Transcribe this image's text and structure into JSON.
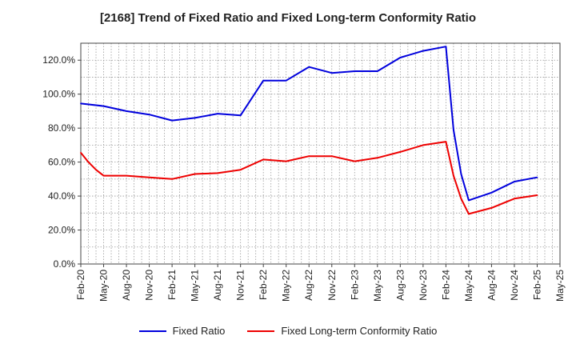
{
  "chart_data": {
    "type": "line",
    "title": "[2168]  Trend of Fixed Ratio and Fixed Long-term Conformity Ratio",
    "xlabel": "",
    "ylabel": "",
    "x_tick_labels": [
      "Feb-20",
      "May-20",
      "Aug-20",
      "Nov-20",
      "Feb-21",
      "May-21",
      "Aug-21",
      "Nov-21",
      "Feb-22",
      "May-22",
      "Aug-22",
      "Nov-22",
      "Feb-23",
      "May-23",
      "Aug-23",
      "Nov-23",
      "Feb-24",
      "May-24",
      "Aug-24",
      "Nov-24",
      "Feb-25",
      "May-25"
    ],
    "y_tick_labels": [
      "0.0%",
      "20.0%",
      "40.0%",
      "60.0%",
      "80.0%",
      "100.0%",
      "120.0%"
    ],
    "ylim": [
      0,
      130
    ],
    "grid": true,
    "legend_position": "bottom",
    "series": [
      {
        "name": "Fixed Ratio",
        "color": "#0000dd",
        "points": [
          [
            "Feb-20",
            94.5
          ],
          [
            "May-20",
            93.0
          ],
          [
            "Aug-20",
            90.0
          ],
          [
            "Nov-20",
            88.0
          ],
          [
            "Feb-21",
            84.5
          ],
          [
            "May-21",
            86.0
          ],
          [
            "Aug-21",
            88.5
          ],
          [
            "Nov-21",
            87.5
          ],
          [
            "Feb-22",
            108.0
          ],
          [
            "May-22",
            108.0
          ],
          [
            "Aug-22",
            116.0
          ],
          [
            "Nov-22",
            112.5
          ],
          [
            "Feb-23",
            113.5
          ],
          [
            "May-23",
            113.5
          ],
          [
            "Aug-23",
            121.5
          ],
          [
            "Nov-23",
            125.5
          ],
          [
            "Feb-24",
            128.0
          ],
          [
            "Mar-24",
            79.0
          ],
          [
            "Apr-24",
            53.0
          ],
          [
            "May-24",
            37.5
          ],
          [
            "Aug-24",
            42.0
          ],
          [
            "Nov-24",
            48.5
          ],
          [
            "Feb-25",
            51.0
          ]
        ]
      },
      {
        "name": "Fixed Long-term Conformity Ratio",
        "color": "#ee0000",
        "points": [
          [
            "Feb-20",
            65.5
          ],
          [
            "Mar-20",
            60.0
          ],
          [
            "Apr-20",
            55.5
          ],
          [
            "May-20",
            52.0
          ],
          [
            "Aug-20",
            52.0
          ],
          [
            "Nov-20",
            51.0
          ],
          [
            "Feb-21",
            50.0
          ],
          [
            "May-21",
            53.0
          ],
          [
            "Aug-21",
            53.5
          ],
          [
            "Nov-21",
            55.5
          ],
          [
            "Feb-22",
            61.5
          ],
          [
            "May-22",
            60.5
          ],
          [
            "Aug-22",
            63.5
          ],
          [
            "Nov-22",
            63.5
          ],
          [
            "Feb-23",
            60.5
          ],
          [
            "May-23",
            62.5
          ],
          [
            "Aug-23",
            66.0
          ],
          [
            "Nov-23",
            70.0
          ],
          [
            "Feb-24",
            72.0
          ],
          [
            "Mar-24",
            52.0
          ],
          [
            "Apr-24",
            38.5
          ],
          [
            "May-24",
            29.5
          ],
          [
            "Aug-24",
            33.0
          ],
          [
            "Nov-24",
            38.5
          ],
          [
            "Feb-25",
            40.5
          ]
        ]
      }
    ]
  }
}
